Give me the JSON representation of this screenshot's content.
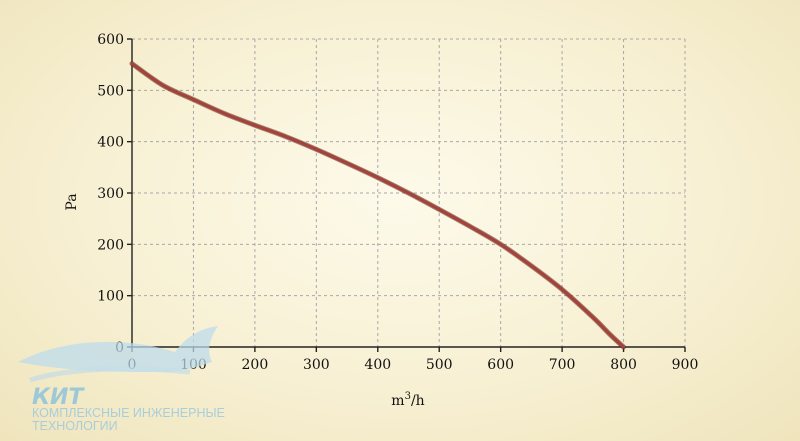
{
  "chart_data": {
    "type": "line",
    "title": "",
    "xlabel": "m",
    "xlabel_sup": "3",
    "xlabel_suffix": "/h",
    "ylabel": "Pa",
    "xlim": [
      0,
      900
    ],
    "ylim": [
      0,
      600
    ],
    "x_ticks": [
      0,
      100,
      200,
      300,
      400,
      500,
      600,
      700,
      800,
      900
    ],
    "y_ticks": [
      0,
      100,
      200,
      300,
      400,
      500,
      600
    ],
    "grid": true,
    "series": [
      {
        "color": "#a3433a",
        "x": [
          0,
          50,
          100,
          150,
          200,
          250,
          300,
          350,
          400,
          450,
          500,
          550,
          600,
          650,
          700,
          750,
          780,
          800
        ],
        "y": [
          552,
          510,
          482,
          455,
          432,
          410,
          385,
          358,
          330,
          300,
          268,
          235,
          200,
          158,
          112,
          58,
          22,
          0
        ]
      }
    ]
  },
  "logo": {
    "name": "КИТ",
    "line1": "КОМПЛЕКСНЫЕ ИНЖЕНЕРНЫЕ",
    "line2": "ТЕХНОЛОГИИ"
  }
}
